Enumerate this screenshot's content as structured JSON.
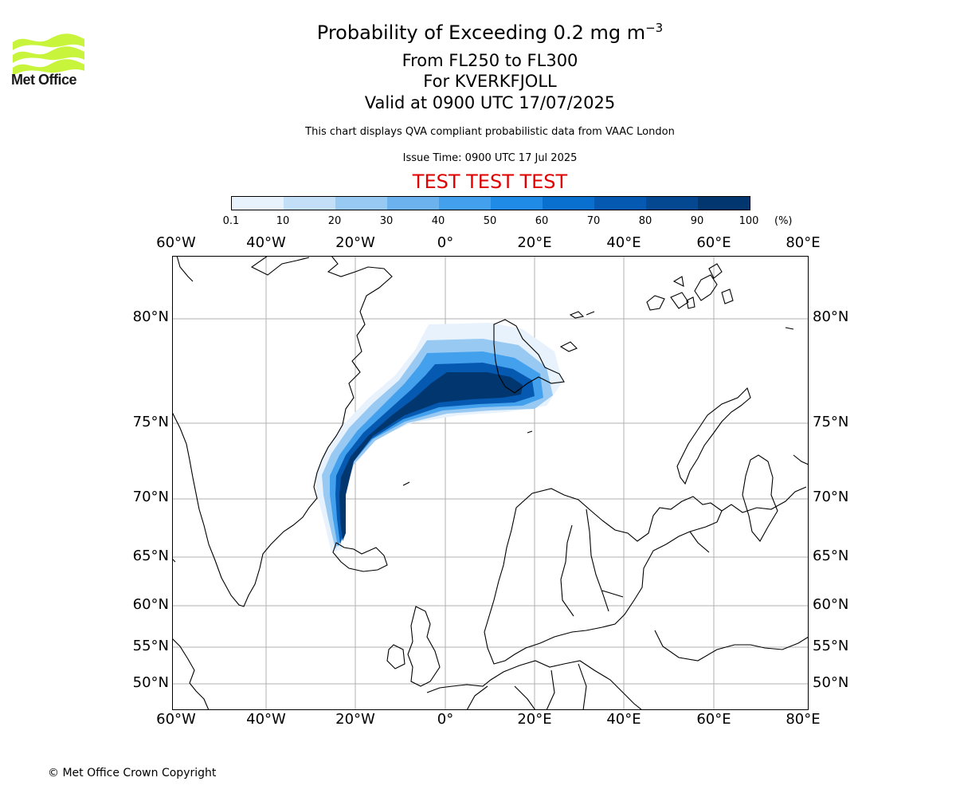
{
  "logo": {
    "text": "Met Office",
    "color": "#c8f53c"
  },
  "title": {
    "main": "Probability of Exceeding 0.2 mg m",
    "superscript": "−3",
    "levels": "From FL250 to FL300",
    "volcano": "For KVERKFJOLL",
    "valid": "Valid at 0900 UTC 17/07/2025"
  },
  "disclaimer": "This chart displays QVA compliant probabilistic data from VAAC London",
  "issue_time": "Issue Time: 0900 UTC 17 Jul 2025",
  "test_banner": {
    "text": "TEST TEST TEST",
    "color": "#e00000"
  },
  "colorbar": {
    "ticks": [
      "0.1",
      "10",
      "20",
      "30",
      "40",
      "50",
      "60",
      "70",
      "80",
      "90",
      "100"
    ],
    "unit": "(%)",
    "colors": [
      "#e8f2fd",
      "#c3dff8",
      "#98c9f3",
      "#6cb2ef",
      "#43a0ec",
      "#1f8be6",
      "#0a70d0",
      "#0559b0",
      "#034890",
      "#02366f"
    ]
  },
  "map": {
    "lon_labels": [
      "60°W",
      "40°W",
      "20°W",
      "0°",
      "20°E",
      "40°E",
      "60°E",
      "80°E"
    ],
    "lat_labels": [
      "80°N",
      "75°N",
      "70°N",
      "65°N",
      "60°N",
      "55°N",
      "50°N"
    ],
    "grid_color": "#b0b0b0",
    "coast_color": "#000000"
  },
  "copyright": "© Met Office Crown Copyright"
}
